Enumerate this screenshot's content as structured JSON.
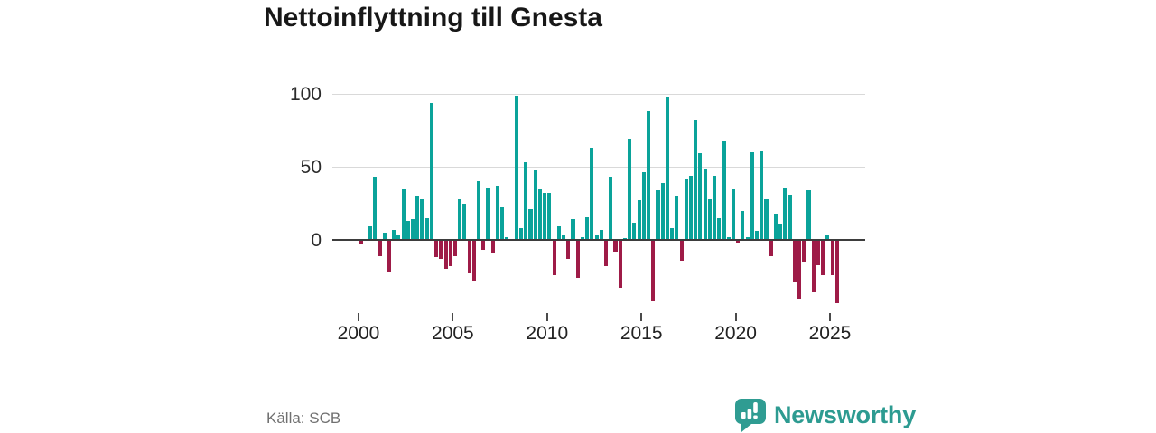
{
  "title": "Nettoinflyttning till Gnesta",
  "footer": {
    "source": "Källa: SCB",
    "brand": "Newsworthy"
  },
  "colors": {
    "positive_bar": "#0aa39a",
    "negative_bar": "#9e1b47",
    "brand_teal": "#2d9b91",
    "gridline": "#d9d9d9",
    "zero_line": "#3d3d3d"
  },
  "chart_data": {
    "type": "bar",
    "title": "Nettoinflyttning till Gnesta",
    "xlabel": "",
    "ylabel": "",
    "frequency": "quarterly",
    "range_start": "2000Q1",
    "range_end": "2025Q2",
    "x_axis": {
      "tick_labels": [
        "2000",
        "2005",
        "2010",
        "2015",
        "2020",
        "2025"
      ]
    },
    "y_axis": {
      "tick_labels": [
        0,
        50,
        100
      ],
      "gridlines_at": [
        50,
        100
      ],
      "min": -50,
      "max": 105
    },
    "legend": "none",
    "series": [
      {
        "year": 2000,
        "values": [
          -3,
          0,
          9,
          43
        ]
      },
      {
        "year": 2001,
        "values": [
          -11,
          5,
          -22,
          7
        ]
      },
      {
        "year": 2002,
        "values": [
          4,
          35,
          13,
          14
        ]
      },
      {
        "year": 2003,
        "values": [
          30,
          28,
          15,
          94
        ]
      },
      {
        "year": 2004,
        "values": [
          -12,
          -13,
          -20,
          -18
        ]
      },
      {
        "year": 2005,
        "values": [
          -11,
          28,
          25,
          -23
        ]
      },
      {
        "year": 2006,
        "values": [
          -28,
          40,
          -7,
          36
        ]
      },
      {
        "year": 2007,
        "values": [
          -9,
          37,
          23,
          2
        ]
      },
      {
        "year": 2008,
        "values": [
          0,
          99,
          8,
          53
        ]
      },
      {
        "year": 2009,
        "values": [
          21,
          48,
          35,
          32
        ]
      },
      {
        "year": 2010,
        "values": [
          32,
          -24,
          9,
          3
        ]
      },
      {
        "year": 2011,
        "values": [
          -13,
          14,
          -26,
          2
        ]
      },
      {
        "year": 2012,
        "values": [
          16,
          63,
          3,
          7
        ]
      },
      {
        "year": 2013,
        "values": [
          -18,
          43,
          -8,
          -33
        ]
      },
      {
        "year": 2014,
        "values": [
          1,
          69,
          12,
          27
        ]
      },
      {
        "year": 2015,
        "values": [
          46,
          88,
          -42,
          34
        ]
      },
      {
        "year": 2016,
        "values": [
          39,
          98,
          8,
          30
        ]
      },
      {
        "year": 2017,
        "values": [
          -14,
          42,
          44,
          82
        ]
      },
      {
        "year": 2018,
        "values": [
          59,
          49,
          28,
          44
        ]
      },
      {
        "year": 2019,
        "values": [
          15,
          68,
          2,
          35
        ]
      },
      {
        "year": 2020,
        "values": [
          -2,
          20,
          2,
          60
        ]
      },
      {
        "year": 2021,
        "values": [
          6,
          61,
          28,
          -11
        ]
      },
      {
        "year": 2022,
        "values": [
          18,
          11,
          36,
          31
        ]
      },
      {
        "year": 2023,
        "values": [
          -29,
          -41,
          -15,
          34
        ]
      },
      {
        "year": 2024,
        "values": [
          -36,
          -17,
          -24,
          4
        ]
      },
      {
        "year": 2025,
        "values": [
          -24,
          -43
        ]
      }
    ]
  }
}
